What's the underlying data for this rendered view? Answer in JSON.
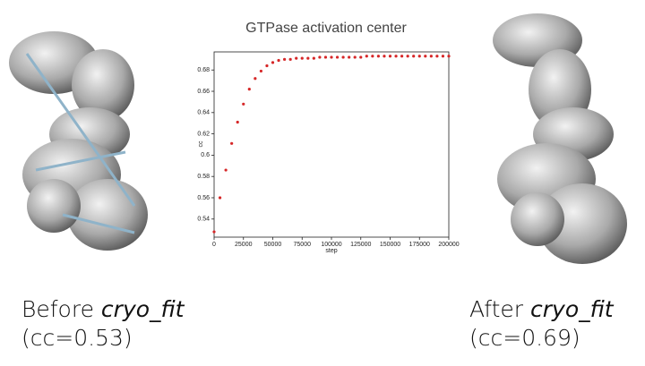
{
  "chart_data": {
    "type": "scatter",
    "title": "GTPase activation center",
    "x_label": "step",
    "y_label": "cc",
    "x": [
      0,
      5000,
      10000,
      15000,
      20000,
      25000,
      30000,
      35000,
      40000,
      45000,
      50000,
      55000,
      60000,
      65000,
      70000,
      75000,
      80000,
      85000,
      90000,
      95000,
      100000,
      105000,
      110000,
      115000,
      120000,
      125000,
      130000,
      135000,
      140000,
      145000,
      150000,
      155000,
      160000,
      165000,
      170000,
      175000,
      180000,
      185000,
      190000,
      195000,
      200000
    ],
    "values": [
      0.528,
      0.56,
      0.586,
      0.611,
      0.631,
      0.648,
      0.662,
      0.672,
      0.679,
      0.684,
      0.687,
      0.689,
      0.69,
      0.69,
      0.691,
      0.691,
      0.691,
      0.691,
      0.692,
      0.692,
      0.692,
      0.692,
      0.692,
      0.692,
      0.692,
      0.692,
      0.693,
      0.693,
      0.693,
      0.693,
      0.693,
      0.693,
      0.693,
      0.693,
      0.693,
      0.693,
      0.693,
      0.693,
      0.693,
      0.693,
      0.693
    ],
    "color": "#d62728",
    "xlim": [
      0,
      200000
    ],
    "xticks": [
      0,
      25000,
      50000,
      75000,
      100000,
      125000,
      150000,
      175000,
      200000
    ],
    "ylim": [
      0.523,
      0.697
    ],
    "yticks": [
      0.54,
      0.56,
      0.58,
      0.6,
      0.62,
      0.64,
      0.66,
      0.68
    ]
  },
  "captions": {
    "before": {
      "text": "Before",
      "emphasis": "cryo_fit",
      "score": "(cc=0.53)"
    },
    "after": {
      "text": "After",
      "emphasis": "cryo_fit",
      "score": "(cc=0.69)"
    }
  }
}
